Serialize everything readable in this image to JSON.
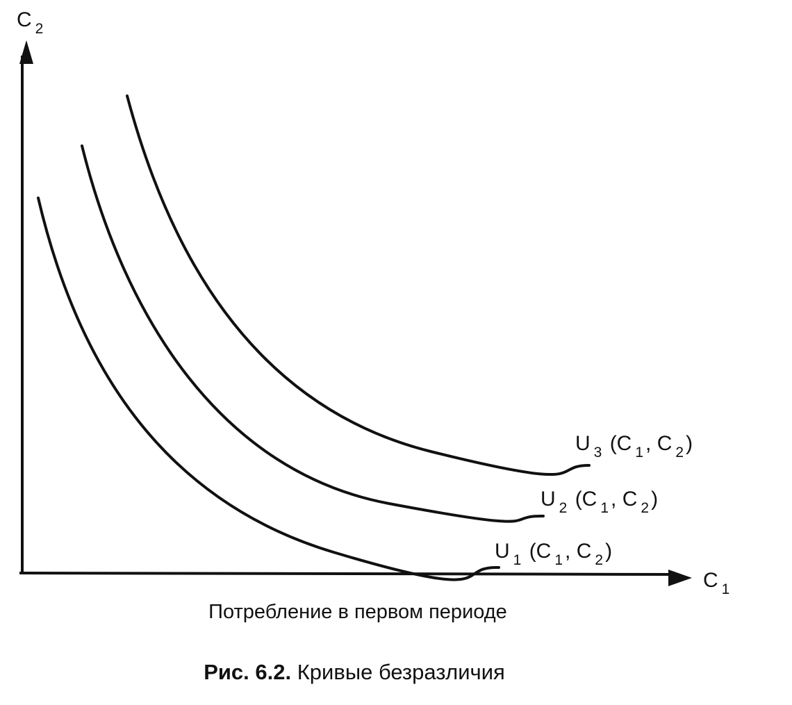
{
  "axes": {
    "y_label": [
      "C",
      "2"
    ],
    "x_label": [
      "C",
      "1"
    ],
    "x_title": "Потребление в первом периоде"
  },
  "curves": [
    {
      "label": [
        "U",
        "1",
        " (C",
        "1",
        ", C",
        "2",
        ")"
      ]
    },
    {
      "label": [
        "U",
        "2",
        " (C",
        "1",
        ", C",
        "2",
        ")"
      ]
    },
    {
      "label": [
        "U",
        "3",
        " (C",
        "1",
        ", C",
        "2",
        ")"
      ]
    }
  ],
  "caption": {
    "number": "Рис. 6.2.",
    "title": "Кривые безразличия"
  }
}
